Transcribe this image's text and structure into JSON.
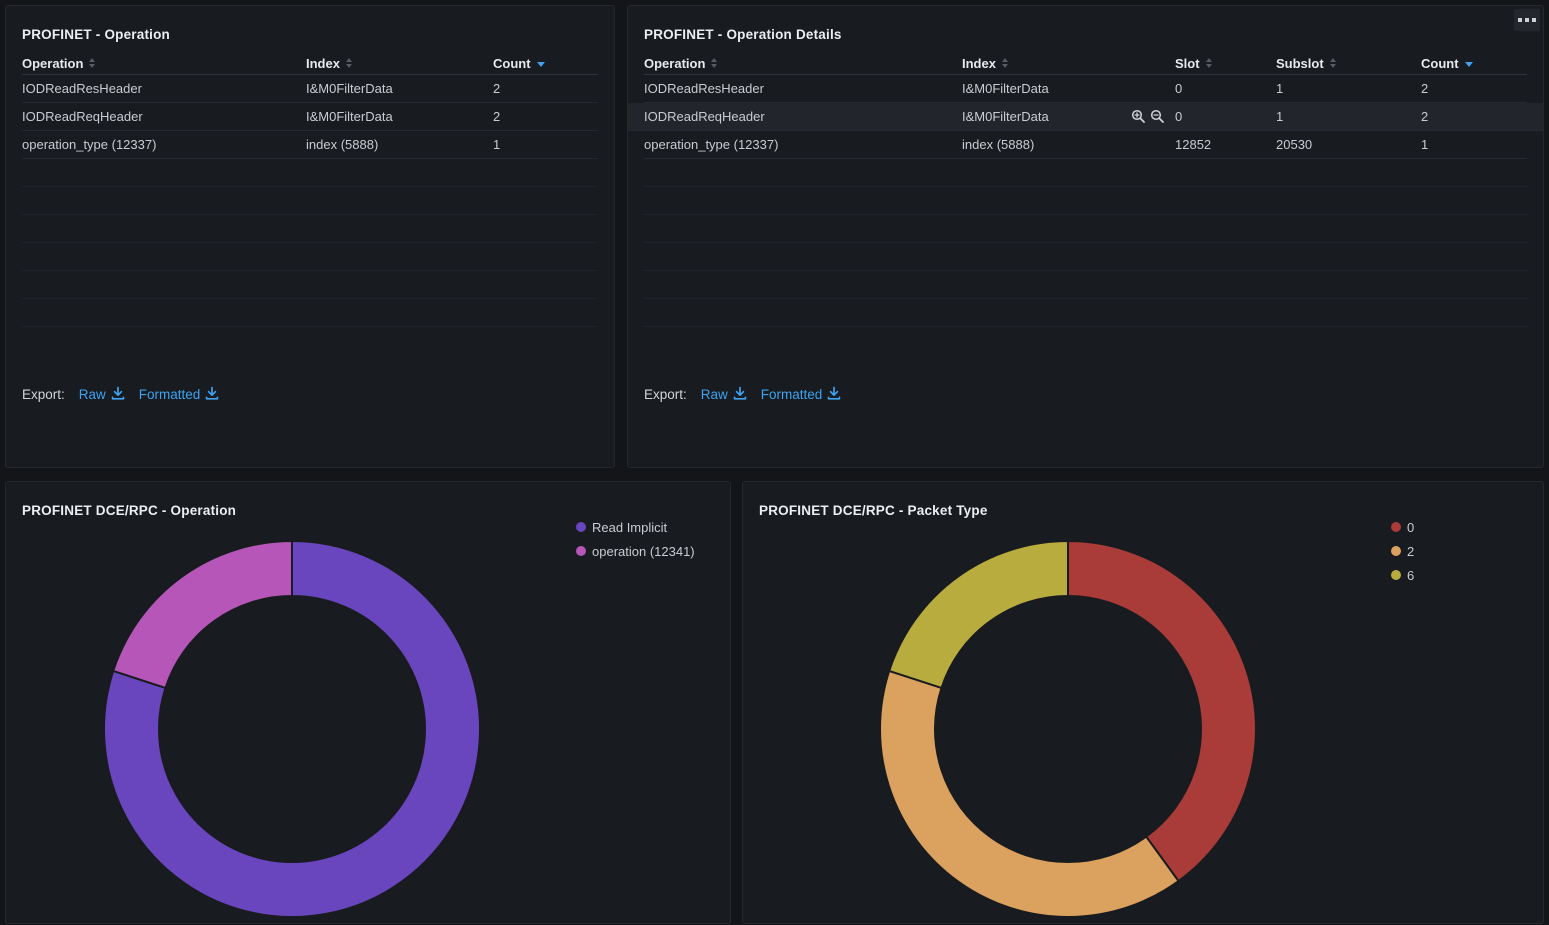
{
  "colors": {
    "page_background": "#131518",
    "panel_background": "#181b1f",
    "link_blue": "#3da3f2",
    "row_highlight": "#22252c",
    "header_text": "#e7e9ed",
    "cell_text": "#c9ccd2"
  },
  "icons": {
    "panel_menu": "panel-menu-icon",
    "sort_inactive": "sort-carets-icon",
    "sort_descending": "sort-desc-icon",
    "export_download": "download-icon",
    "row_filter_in": "zoom-in-icon",
    "row_filter_out": "zoom-out-icon"
  },
  "panels": {
    "operation": {
      "title": "PROFINET - Operation",
      "columns": [
        {
          "label": "Operation",
          "sorted": false
        },
        {
          "label": "Index",
          "sorted": false
        },
        {
          "label": "Count",
          "sorted": true
        }
      ],
      "rows": [
        {
          "cells": [
            "IODReadResHeader",
            "I&M0FilterData",
            "2"
          ]
        },
        {
          "cells": [
            "IODReadReqHeader",
            "I&M0FilterData",
            "2"
          ]
        },
        {
          "cells": [
            "operation_type (12337)",
            "index (5888)",
            "1"
          ]
        }
      ],
      "empty_rows": 6,
      "export": {
        "label": "Export:",
        "raw": "Raw",
        "formatted": "Formatted"
      }
    },
    "operation_details": {
      "title": "PROFINET - Operation Details",
      "columns": [
        {
          "label": "Operation",
          "sorted": false
        },
        {
          "label": "Index",
          "sorted": false
        },
        {
          "label": "Slot",
          "sorted": false
        },
        {
          "label": "Subslot",
          "sorted": false
        },
        {
          "label": "Count",
          "sorted": true
        }
      ],
      "rows": [
        {
          "cells": [
            "IODReadResHeader",
            "I&M0FilterData",
            "0",
            "1",
            "2"
          ]
        },
        {
          "cells": [
            "IODReadReqHeader",
            "I&M0FilterData",
            "0",
            "1",
            "2"
          ],
          "highlighted": true,
          "zoom_icons": true
        },
        {
          "cells": [
            "operation_type (12337)",
            "index (5888)",
            "12852",
            "20530",
            "1"
          ]
        }
      ],
      "empty_rows": 6,
      "export": {
        "label": "Export:",
        "raw": "Raw",
        "formatted": "Formatted"
      }
    }
  },
  "chart_data": [
    {
      "type": "pie",
      "donut": true,
      "title": "PROFINET DCE/RPC - Operation",
      "labels": [
        "Read Implicit",
        "operation (12341)"
      ],
      "values": [
        4,
        1
      ],
      "colors": [
        "#6A46BE",
        "#B656B9"
      ],
      "legend_position": "top-right",
      "start_angle_deg": 0,
      "direction": "clockwise"
    },
    {
      "type": "pie",
      "donut": true,
      "title": "PROFINET DCE/RPC - Packet Type",
      "labels": [
        "0",
        "2",
        "6"
      ],
      "values": [
        2,
        2,
        1
      ],
      "colors": [
        "#A93B38",
        "#DBA15E",
        "#B9AC3E"
      ],
      "legend_position": "top-right",
      "start_angle_deg": 0,
      "direction": "clockwise"
    }
  ]
}
